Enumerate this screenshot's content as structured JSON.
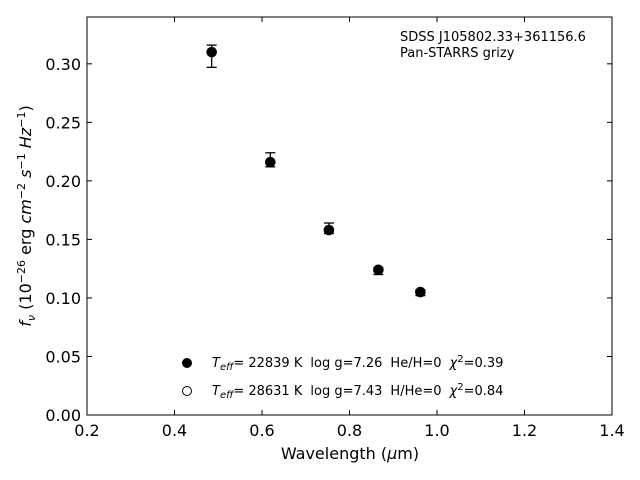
{
  "chart_data": {
    "type": "scatter",
    "title": "",
    "xlabel": "Wavelength (μm)",
    "ylabel": "fν (10⁻²⁶ erg cm⁻² s⁻¹ Hz⁻¹)",
    "xlim": [
      0.2,
      1.4
    ],
    "ylim": [
      0.0,
      0.34
    ],
    "xticks": [
      0.2,
      0.4,
      0.6,
      0.8,
      1.0,
      1.2,
      1.4
    ],
    "xtick_labels": [
      "0.2",
      "0.4",
      "0.6",
      "0.8",
      "1.0",
      "1.2",
      "1.4"
    ],
    "yticks": [
      0.0,
      0.05,
      0.1,
      0.15,
      0.2,
      0.25,
      0.3
    ],
    "ytick_labels": [
      "0.00",
      "0.05",
      "0.10",
      "0.15",
      "0.20",
      "0.25",
      "0.30"
    ],
    "grid": false,
    "annotation": {
      "object": "SDSS J105802.33+361156.6",
      "survey": "Pan-STARRS grizy"
    },
    "series": [
      {
        "marker": "filled-circle",
        "color": "#000000",
        "x": [
          0.485,
          0.619,
          0.753,
          0.866,
          0.962
        ],
        "y": [
          0.31,
          0.216,
          0.158,
          0.124,
          0.105
        ],
        "err_low": [
          0.297,
          0.212,
          0.155,
          0.12,
          0.102
        ],
        "err_high": [
          0.316,
          0.224,
          0.164,
          0.126,
          0.107
        ]
      },
      {
        "marker": "open-circle",
        "color": "#000000",
        "x": [
          0.485,
          0.619,
          0.753,
          0.866,
          0.962
        ],
        "y": [
          0.31,
          0.216,
          0.158,
          0.124,
          0.105
        ]
      }
    ],
    "legend": {
      "placement": "lower-center",
      "entries": [
        {
          "marker": "filled-circle",
          "teff_value": "= 22839 K",
          "logg": "log g=7.26",
          "composition": "He/H=0",
          "chi_value": "=0.39"
        },
        {
          "marker": "open-circle",
          "teff_value": "= 28631 K",
          "logg": "log g=7.43",
          "composition": "H/He=0",
          "chi_value": "=0.84"
        }
      ]
    }
  }
}
